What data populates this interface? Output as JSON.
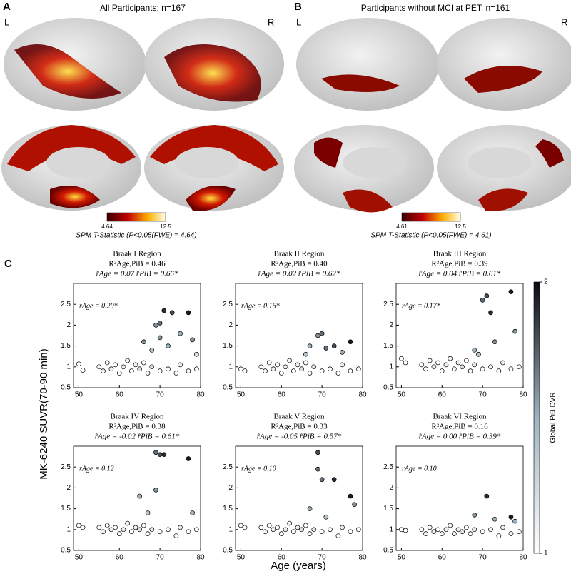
{
  "figure": {
    "panel_a": {
      "label": "A",
      "title": "All Participants; n=167",
      "left": "L",
      "right": "R",
      "colorbar": {
        "min": 4.64,
        "max": 12.5,
        "caption": "SPM T-Statistic (P<0.05(FWE) = 4.64)"
      }
    },
    "panel_b": {
      "label": "B",
      "title": "Participants without MCI at PET; n=161",
      "left": "L",
      "right": "R",
      "colorbar": {
        "min": 4.61,
        "max": 12.5,
        "caption": "SPM T-Statistic (P<0.05(FWE) = 4.61)"
      }
    },
    "panel_c": {
      "label": "C",
      "ylabel": "MK-6240 SUVR(70-90 min)",
      "xlabel": "Age (years)",
      "colorbar": {
        "label": "Global PiB DVR",
        "lim": [
          1,
          2
        ],
        "ticks": [
          1,
          2
        ]
      }
    }
  },
  "chart_data": [
    {
      "type": "scatter",
      "title": "Braak I Region",
      "r2": "R²Age,PiB = 0.46",
      "betas": "r̂Age = 0.07   r̂PiB = 0.66*",
      "annotation": "rAge = 0.20*",
      "x": [
        55,
        56,
        57,
        58,
        59,
        60,
        61,
        62,
        63,
        64,
        65,
        66,
        67,
        68,
        70,
        72,
        74,
        75,
        77,
        79,
        50,
        51,
        66,
        68,
        69,
        70,
        70,
        71,
        72,
        73,
        75,
        77,
        78,
        79
      ],
      "values": [
        1.0,
        0.9,
        1.1,
        0.95,
        1.05,
        0.85,
        1.0,
        1.15,
        0.9,
        1.05,
        0.95,
        1.1,
        0.85,
        1.0,
        0.9,
        0.95,
        0.85,
        1.05,
        0.9,
        0.95,
        1.07,
        0.92,
        1.6,
        1.4,
        2.0,
        2.05,
        1.7,
        2.35,
        1.5,
        2.3,
        1.8,
        2.3,
        1.65,
        1.3
      ],
      "color_values": [
        1.0,
        1.05,
        1.0,
        1.1,
        1.0,
        1.0,
        1.1,
        1.05,
        1.0,
        1.1,
        1.2,
        1.0,
        1.05,
        1.15,
        1.0,
        1.05,
        1.0,
        1.1,
        1.0,
        1.0,
        1.0,
        1.0,
        1.6,
        1.4,
        1.6,
        1.7,
        1.6,
        1.9,
        1.5,
        1.8,
        1.5,
        1.95,
        1.6,
        1.2
      ],
      "xlim": [
        48.7,
        80
      ],
      "ylim": [
        0.5,
        3.0
      ],
      "xticks": [
        50,
        60,
        70,
        80
      ],
      "yticks": [
        0.5,
        1,
        1.5,
        2,
        2.5
      ]
    },
    {
      "type": "scatter",
      "title": "Braak II Region",
      "r2": "R²Age,PiB = 0.40",
      "betas": "r̂Age = 0.02   r̂PiB = 0.62*",
      "annotation": "rAge = 0.16*",
      "x": [
        55,
        56,
        57,
        58,
        59,
        60,
        61,
        62,
        63,
        64,
        65,
        66,
        67,
        68,
        70,
        72,
        74,
        75,
        77,
        79,
        50,
        51,
        67,
        69,
        70,
        71,
        73,
        75,
        77,
        66
      ],
      "values": [
        1.0,
        0.9,
        1.1,
        0.95,
        1.05,
        0.85,
        1.0,
        1.15,
        0.9,
        1.05,
        0.95,
        1.1,
        0.85,
        1.0,
        0.9,
        0.95,
        0.85,
        1.05,
        0.9,
        0.95,
        0.95,
        0.9,
        1.5,
        1.75,
        1.8,
        1.45,
        1.5,
        1.35,
        1.6,
        1.3
      ],
      "color_values": [
        1.0,
        1.05,
        1.0,
        1.1,
        1.0,
        1.0,
        1.1,
        1.05,
        1.0,
        1.1,
        1.2,
        1.0,
        1.05,
        1.15,
        1.0,
        1.05,
        1.0,
        1.1,
        1.0,
        1.0,
        1.0,
        1.0,
        1.5,
        1.6,
        1.7,
        1.7,
        1.8,
        1.5,
        1.95,
        1.4
      ],
      "xlim": [
        48.7,
        80
      ],
      "ylim": [
        0.5,
        3.0
      ],
      "xticks": [
        50,
        60,
        70,
        80
      ],
      "yticks": [
        0.5,
        1,
        1.5,
        2,
        2.5
      ]
    },
    {
      "type": "scatter",
      "title": "Braak III Region",
      "r2": "R²Age,PiB = 0.39",
      "betas": "r̂Age = 0.04   r̂PiB = 0.61*",
      "annotation": "rAge = 0.17*",
      "x": [
        55,
        56,
        57,
        58,
        59,
        60,
        61,
        62,
        63,
        64,
        65,
        66,
        67,
        68,
        70,
        72,
        74,
        75,
        77,
        79,
        50,
        51,
        70,
        71,
        72,
        77,
        78,
        68,
        73,
        69
      ],
      "values": [
        1.05,
        0.95,
        1.15,
        1.0,
        1.1,
        0.9,
        1.05,
        1.2,
        0.95,
        1.1,
        1.0,
        1.15,
        0.9,
        1.05,
        0.95,
        1.0,
        0.9,
        1.1,
        0.95,
        1.0,
        1.2,
        1.1,
        2.6,
        2.7,
        2.3,
        2.8,
        1.85,
        1.4,
        1.6,
        1.3
      ],
      "color_values": [
        1.0,
        1.05,
        1.0,
        1.1,
        1.0,
        1.0,
        1.1,
        1.05,
        1.0,
        1.1,
        1.2,
        1.0,
        1.05,
        1.15,
        1.0,
        1.05,
        1.0,
        1.1,
        1.0,
        1.0,
        1.0,
        1.0,
        1.7,
        1.8,
        1.9,
        1.95,
        1.6,
        1.5,
        1.6,
        1.4
      ],
      "xlim": [
        48.7,
        80
      ],
      "ylim": [
        0.5,
        3.0
      ],
      "xticks": [
        50,
        60,
        70,
        80
      ],
      "yticks": [
        0.5,
        1,
        1.5,
        2,
        2.5
      ]
    },
    {
      "type": "scatter",
      "title": "Braak IV Region",
      "r2": "R²Age,PiB = 0.38",
      "betas": "r̂Age = -0.02   r̂PiB = 0.61*",
      "annotation": "rAge = 0.12",
      "x": [
        55,
        56,
        57,
        58,
        59,
        60,
        61,
        62,
        63,
        64,
        65,
        66,
        67,
        68,
        70,
        72,
        74,
        75,
        77,
        79,
        50,
        51,
        69,
        70,
        71,
        77,
        69,
        65,
        67,
        78
      ],
      "values": [
        1.05,
        0.95,
        1.1,
        1.0,
        1.05,
        0.9,
        1.0,
        1.15,
        0.95,
        1.05,
        1.0,
        1.1,
        0.9,
        1.0,
        0.95,
        1.0,
        0.85,
        1.05,
        0.95,
        1.0,
        1.1,
        1.05,
        2.85,
        2.8,
        2.8,
        2.7,
        1.95,
        1.8,
        1.4,
        1.4
      ],
      "color_values": [
        1.0,
        1.05,
        1.0,
        1.1,
        1.0,
        1.0,
        1.1,
        1.05,
        1.0,
        1.1,
        1.2,
        1.0,
        1.05,
        1.15,
        1.0,
        1.05,
        1.0,
        1.1,
        1.0,
        1.0,
        1.0,
        1.0,
        1.7,
        1.8,
        1.9,
        1.95,
        1.6,
        1.5,
        1.4,
        1.5
      ],
      "xlim": [
        48.7,
        80
      ],
      "ylim": [
        0.5,
        3.0
      ],
      "xticks": [
        50,
        60,
        70,
        80
      ],
      "yticks": [
        0.5,
        1,
        1.5,
        2,
        2.5
      ]
    },
    {
      "type": "scatter",
      "title": "Braak V Region",
      "r2": "R²Age,PiB = 0.33",
      "betas": "r̂Age = -0.05   r̂PiB = 0.57*",
      "annotation": "rAge = 0.10",
      "x": [
        55,
        56,
        57,
        58,
        59,
        60,
        61,
        62,
        63,
        64,
        65,
        66,
        67,
        68,
        70,
        72,
        74,
        75,
        77,
        79,
        50,
        51,
        69,
        69,
        70,
        73,
        77,
        78,
        67,
        71
      ],
      "values": [
        1.05,
        0.95,
        1.1,
        1.0,
        1.05,
        0.9,
        1.0,
        1.15,
        0.95,
        1.05,
        1.0,
        1.1,
        0.9,
        1.0,
        0.95,
        1.0,
        0.85,
        1.05,
        0.95,
        1.0,
        1.1,
        1.05,
        2.85,
        2.45,
        2.2,
        2.2,
        1.8,
        1.6,
        1.5,
        1.3
      ],
      "color_values": [
        1.0,
        1.05,
        1.0,
        1.1,
        1.0,
        1.0,
        1.1,
        1.05,
        1.0,
        1.1,
        1.2,
        1.0,
        1.05,
        1.15,
        1.0,
        1.05,
        1.0,
        1.1,
        1.0,
        1.0,
        1.0,
        1.0,
        1.8,
        1.7,
        1.7,
        1.9,
        1.95,
        1.6,
        1.5,
        1.4
      ],
      "xlim": [
        48.7,
        80
      ],
      "ylim": [
        0.5,
        3.0
      ],
      "xticks": [
        50,
        60,
        70,
        80
      ],
      "yticks": [
        0.5,
        1,
        1.5,
        2,
        2.5
      ]
    },
    {
      "type": "scatter",
      "title": "Braak VI Region",
      "r2": "R²Age,PiB = 0.16",
      "betas": "r̂Age = 0.00   r̂PiB = 0.39*",
      "annotation": "rAge = 0.10",
      "x": [
        55,
        56,
        57,
        58,
        59,
        60,
        61,
        62,
        63,
        64,
        65,
        66,
        67,
        68,
        70,
        72,
        74,
        75,
        77,
        79,
        50,
        51,
        71,
        68,
        77,
        73,
        78
      ],
      "values": [
        1.0,
        0.9,
        1.05,
        0.95,
        1.0,
        0.9,
        1.0,
        1.1,
        0.9,
        1.0,
        0.95,
        1.05,
        0.9,
        1.0,
        0.95,
        1.0,
        0.85,
        1.05,
        0.9,
        0.95,
        1.0,
        0.98,
        1.8,
        1.35,
        1.3,
        1.25,
        1.2
      ],
      "color_values": [
        1.0,
        1.05,
        1.0,
        1.1,
        1.0,
        1.0,
        1.1,
        1.05,
        1.0,
        1.1,
        1.2,
        1.0,
        1.05,
        1.15,
        1.0,
        1.05,
        1.0,
        1.1,
        1.0,
        1.0,
        1.0,
        1.0,
        1.9,
        1.6,
        1.95,
        1.5,
        1.5
      ],
      "xlim": [
        48.7,
        80
      ],
      "ylim": [
        0.5,
        3.0
      ],
      "xticks": [
        50,
        60,
        70,
        80
      ],
      "yticks": [
        0.5,
        1,
        1.5,
        2,
        2.5
      ]
    }
  ]
}
